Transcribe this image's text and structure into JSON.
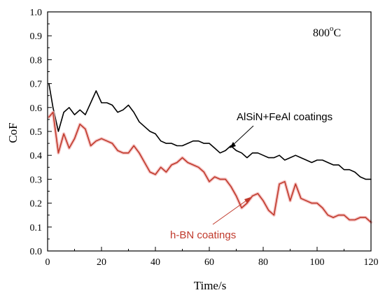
{
  "chart_data": {
    "type": "line",
    "xlabel": "Time/s",
    "ylabel": "CoF",
    "xlim": [
      0,
      120
    ],
    "ylim": [
      0,
      1.0
    ],
    "xticks": [
      "0",
      "20",
      "40",
      "60",
      "80",
      "100",
      "120"
    ],
    "yticks": [
      "0.0",
      "0.1",
      "0.2",
      "0.3",
      "0.4",
      "0.5",
      "0.6",
      "0.7",
      "0.8",
      "0.9",
      "1.0"
    ],
    "xtick_values": [
      0,
      20,
      40,
      60,
      80,
      100,
      120
    ],
    "ytick_values": [
      0,
      0.1,
      0.2,
      0.3,
      0.4,
      0.5,
      0.6,
      0.7,
      0.8,
      0.9,
      1.0
    ],
    "temperature_label": {
      "base": "800",
      "sup": "o",
      "unit": "C"
    },
    "grid": false,
    "series": [
      {
        "name": "AlSiN+FeAl coatings",
        "color": "#000000",
        "x": [
          0.5,
          2,
          4,
          6,
          8,
          10,
          12,
          14,
          16,
          18,
          20,
          22,
          24,
          26,
          28,
          30,
          32,
          34,
          36,
          38,
          40,
          42,
          44,
          46,
          48,
          50,
          52,
          54,
          56,
          58,
          60,
          62,
          64,
          66,
          68,
          70,
          72,
          74,
          76,
          78,
          80,
          82,
          84,
          86,
          88,
          90,
          92,
          94,
          96,
          98,
          100,
          102,
          104,
          106,
          108,
          110,
          112,
          114,
          116,
          118,
          120
        ],
        "values": [
          0.7,
          0.6,
          0.5,
          0.58,
          0.6,
          0.57,
          0.59,
          0.57,
          0.62,
          0.67,
          0.62,
          0.62,
          0.61,
          0.58,
          0.59,
          0.61,
          0.58,
          0.54,
          0.52,
          0.5,
          0.49,
          0.46,
          0.45,
          0.45,
          0.44,
          0.44,
          0.45,
          0.46,
          0.46,
          0.45,
          0.45,
          0.43,
          0.41,
          0.42,
          0.44,
          0.42,
          0.41,
          0.39,
          0.41,
          0.41,
          0.4,
          0.39,
          0.39,
          0.4,
          0.38,
          0.39,
          0.4,
          0.39,
          0.38,
          0.37,
          0.38,
          0.38,
          0.37,
          0.36,
          0.36,
          0.34,
          0.34,
          0.33,
          0.31,
          0.3,
          0.3
        ]
      },
      {
        "name": "h-BN coatings",
        "color": "#c0392b",
        "x": [
          0.5,
          2,
          4,
          6,
          8,
          10,
          12,
          14,
          16,
          18,
          20,
          22,
          24,
          26,
          28,
          30,
          32,
          34,
          36,
          38,
          40,
          42,
          44,
          46,
          48,
          50,
          52,
          54,
          56,
          58,
          60,
          62,
          64,
          66,
          68,
          70,
          72,
          74,
          76,
          78,
          80,
          82,
          84,
          86,
          88,
          90,
          92,
          94,
          96,
          98,
          100,
          102,
          104,
          106,
          108,
          110,
          112,
          114,
          116,
          118,
          120
        ],
        "values": [
          0.56,
          0.58,
          0.41,
          0.49,
          0.43,
          0.47,
          0.53,
          0.51,
          0.44,
          0.46,
          0.47,
          0.46,
          0.45,
          0.42,
          0.41,
          0.41,
          0.44,
          0.41,
          0.37,
          0.33,
          0.32,
          0.35,
          0.33,
          0.36,
          0.37,
          0.39,
          0.37,
          0.36,
          0.35,
          0.33,
          0.29,
          0.31,
          0.3,
          0.3,
          0.27,
          0.23,
          0.18,
          0.2,
          0.23,
          0.24,
          0.21,
          0.17,
          0.15,
          0.28,
          0.29,
          0.21,
          0.28,
          0.22,
          0.21,
          0.2,
          0.2,
          0.18,
          0.15,
          0.14,
          0.15,
          0.15,
          0.13,
          0.13,
          0.14,
          0.14,
          0.12
        ]
      }
    ]
  }
}
